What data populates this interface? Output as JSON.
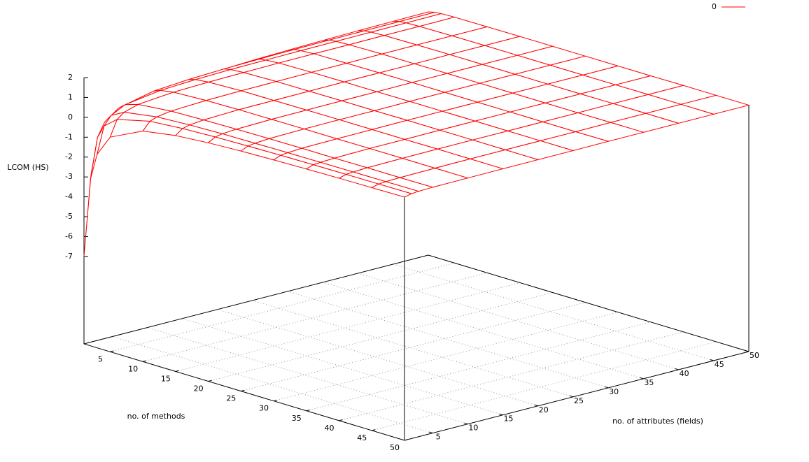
{
  "chart_data": {
    "type": "surface",
    "x_label": "no. of methods",
    "y_label": "no. of attributes (fields)",
    "z_label": "LCOM (HS)",
    "x": [
      1,
      2,
      3,
      5,
      10,
      15,
      20,
      25,
      30,
      35,
      40,
      45,
      50
    ],
    "y": [
      1,
      2,
      3,
      5,
      10,
      15,
      20,
      25,
      30,
      35,
      40,
      45,
      50
    ],
    "series": [
      {
        "name": "0",
        "color": "#ff0000",
        "values": [
          [
            -7,
            -3,
            -1.67,
            -0.6,
            0.2,
            0.47,
            0.6,
            0.68,
            0.73,
            0.77,
            0.8,
            0.82,
            0.84
          ],
          [
            -3,
            -1,
            -0.33,
            0.2,
            0.6,
            0.73,
            0.8,
            0.84,
            0.87,
            0.89,
            0.9,
            0.91,
            0.92
          ],
          [
            -1.67,
            -0.33,
            0.11,
            0.47,
            0.73,
            0.82,
            0.87,
            0.89,
            0.91,
            0.92,
            0.93,
            0.94,
            0.95
          ],
          [
            -0.6,
            0.2,
            0.47,
            0.68,
            0.84,
            0.89,
            0.92,
            0.94,
            0.95,
            0.95,
            0.96,
            0.96,
            0.97
          ],
          [
            0.2,
            0.6,
            0.73,
            0.84,
            0.92,
            0.95,
            0.96,
            0.97,
            0.97,
            0.98,
            0.98,
            0.98,
            0.98
          ],
          [
            0.47,
            0.73,
            0.82,
            0.89,
            0.95,
            0.96,
            0.97,
            0.98,
            0.98,
            0.98,
            0.99,
            0.99,
            0.99
          ],
          [
            0.6,
            0.8,
            0.87,
            0.92,
            0.96,
            0.97,
            0.98,
            0.98,
            0.99,
            0.99,
            0.99,
            0.99,
            0.99
          ],
          [
            0.68,
            0.84,
            0.89,
            0.94,
            0.97,
            0.98,
            0.98,
            0.99,
            0.99,
            0.99,
            0.99,
            0.99,
            0.99
          ],
          [
            0.73,
            0.87,
            0.91,
            0.95,
            0.97,
            0.98,
            0.99,
            0.99,
            0.99,
            0.99,
            0.99,
            0.99,
            0.99
          ],
          [
            0.77,
            0.89,
            0.92,
            0.95,
            0.98,
            0.98,
            0.99,
            0.99,
            0.99,
            0.99,
            0.99,
            0.99,
            0.99
          ],
          [
            0.8,
            0.9,
            0.93,
            0.96,
            0.98,
            0.99,
            0.99,
            0.99,
            0.99,
            0.99,
            1,
            1,
            1
          ],
          [
            0.82,
            0.91,
            0.94,
            0.96,
            0.98,
            0.99,
            0.99,
            0.99,
            0.99,
            1,
            1,
            1,
            1
          ],
          [
            0.84,
            0.92,
            0.95,
            0.97,
            0.98,
            0.99,
            0.99,
            0.99,
            1,
            1,
            1,
            1,
            1
          ]
        ]
      }
    ],
    "xlim": [
      1,
      50
    ],
    "ylim": [
      1,
      50
    ],
    "zlim": [
      -11.4,
      2
    ],
    "xticks": [
      5,
      10,
      15,
      20,
      25,
      30,
      35,
      40,
      45,
      50
    ],
    "yticks": [
      5,
      10,
      15,
      20,
      25,
      30,
      35,
      40,
      45,
      50
    ],
    "zticks": [
      -7,
      -6,
      -5,
      -4,
      -3,
      -2,
      -1,
      0,
      1,
      2
    ],
    "grid": true
  }
}
